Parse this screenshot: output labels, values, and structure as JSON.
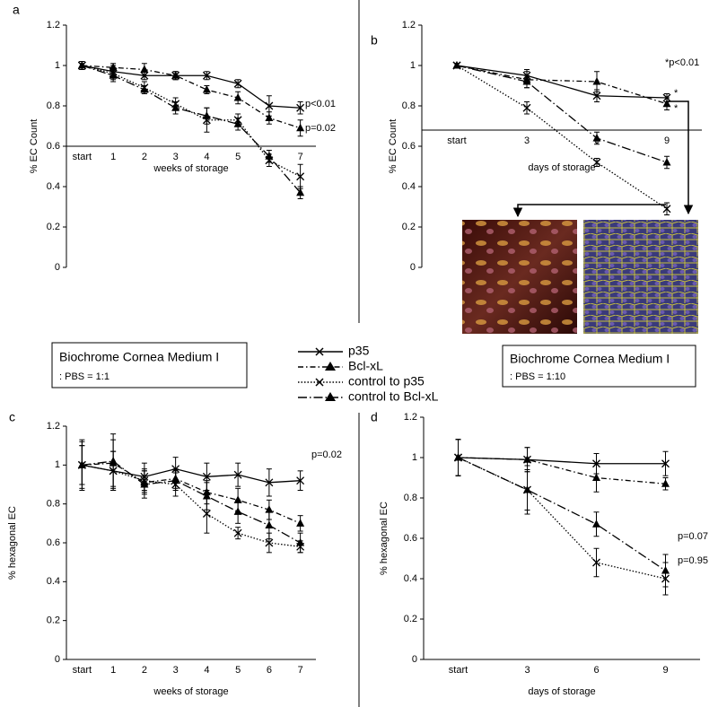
{
  "chart_data": [
    {
      "type": "line",
      "panel_label": "a",
      "y_label": "% EC Count",
      "x_label": "weeks of storage",
      "categories": [
        "start",
        "1",
        "2",
        "3",
        "4",
        "5",
        "6",
        "7"
      ],
      "ylim": [
        0,
        1.2
      ],
      "yticks": [
        0,
        0.2,
        0.4,
        0.6,
        0.8,
        1,
        1.2
      ],
      "annotations": [
        "p<0.01",
        "p=0.02"
      ],
      "series": [
        {
          "name": "p35",
          "color": "#000000",
          "dash": "solid",
          "marker": "x",
          "values": [
            1,
            0.97,
            0.95,
            0.95,
            0.95,
            0.91,
            0.8,
            0.79
          ],
          "errors": [
            0.02,
            0.03,
            0.02,
            0.02,
            0.02,
            0.02,
            0.05,
            0.03
          ]
        },
        {
          "name": "Bcl-xL",
          "color": "#000000",
          "dash": "dashdot",
          "marker": "triangle",
          "values": [
            1,
            0.99,
            0.98,
            0.95,
            0.88,
            0.84,
            0.74,
            0.69
          ],
          "errors": [
            0.02,
            0.02,
            0.03,
            0.02,
            0.02,
            0.03,
            0.03,
            0.04
          ]
        },
        {
          "name": "control to p35",
          "color": "#000000",
          "dash": "dotted",
          "marker": "x",
          "values": [
            1,
            0.96,
            0.89,
            0.81,
            0.73,
            0.73,
            0.53,
            0.45
          ],
          "errors": [
            0.02,
            0.03,
            0.03,
            0.03,
            0.06,
            0.03,
            0.03,
            0.06
          ]
        },
        {
          "name": "control to Bcl-xL",
          "color": "#000000",
          "dash": "longdashdot",
          "marker": "triangle",
          "values": [
            1,
            0.95,
            0.88,
            0.79,
            0.75,
            0.71,
            0.55,
            0.37
          ],
          "errors": [
            0.02,
            0.03,
            0.02,
            0.03,
            0.04,
            0.03,
            0.03,
            0.03
          ]
        }
      ]
    },
    {
      "type": "line",
      "panel_label": "b",
      "y_label": "% EC Count",
      "x_label": "days of storage",
      "categories": [
        "start",
        "3",
        "6",
        "9"
      ],
      "ylim": [
        0,
        1.2
      ],
      "yticks": [
        0,
        0.2,
        0.4,
        0.6,
        0.8,
        1,
        1.2
      ],
      "annotations": [
        "*p<0.01",
        "*",
        "*"
      ],
      "series": [
        {
          "color": "#000000",
          "dash": "solid",
          "marker": "x",
          "values": [
            1,
            0.95,
            0.85,
            0.84
          ],
          "errors": [
            0.01,
            0.03,
            0.03,
            0.02
          ]
        },
        {
          "color": "#000000",
          "dash": "dashdot",
          "marker": "triangle",
          "values": [
            1,
            0.93,
            0.92,
            0.81
          ],
          "errors": [
            0.01,
            0.04,
            0.05,
            0.03
          ]
        },
        {
          "color": "#000000",
          "dash": "dotted",
          "marker": "x",
          "values": [
            1,
            0.79,
            0.52,
            0.29
          ],
          "errors": [
            0.01,
            0.03,
            0.02,
            0.03
          ]
        },
        {
          "color": "#000000",
          "dash": "longdashdot",
          "marker": "triangle",
          "values": [
            1,
            0.92,
            0.64,
            0.52
          ],
          "errors": [
            0.01,
            0.03,
            0.03,
            0.03
          ]
        }
      ]
    },
    {
      "type": "line",
      "panel_label": "c",
      "y_label": "% hexagonal EC",
      "x_label": "weeks of storage",
      "categories": [
        "start",
        "1",
        "2",
        "3",
        "4",
        "5",
        "6",
        "7"
      ],
      "ylim": [
        0,
        1.2
      ],
      "yticks": [
        0,
        0.2,
        0.4,
        0.6,
        0.8,
        1,
        1.2
      ],
      "annotations": [
        "p=0.02"
      ],
      "series": [
        {
          "color": "#000000",
          "dash": "solid",
          "marker": "x",
          "values": [
            1,
            0.97,
            0.94,
            0.98,
            0.94,
            0.95,
            0.91,
            0.92
          ],
          "errors": [
            0.12,
            0.1,
            0.07,
            0.06,
            0.07,
            0.06,
            0.07,
            0.05
          ]
        },
        {
          "color": "#000000",
          "dash": "dashdot",
          "marker": "triangle",
          "values": [
            1,
            1.01,
            0.91,
            0.93,
            0.86,
            0.82,
            0.77,
            0.7
          ],
          "errors": [
            0.1,
            0.12,
            0.06,
            0.05,
            0.06,
            0.06,
            0.05,
            0.04
          ]
        },
        {
          "color": "#000000",
          "dash": "dotted",
          "marker": "x",
          "values": [
            1,
            0.97,
            0.92,
            0.9,
            0.75,
            0.65,
            0.6,
            0.58
          ],
          "errors": [
            0.1,
            0.1,
            0.06,
            0.06,
            0.1,
            0.03,
            0.05,
            0.03
          ]
        },
        {
          "color": "#000000",
          "dash": "longdashdot",
          "marker": "triangle",
          "values": [
            1,
            1.02,
            0.9,
            0.92,
            0.84,
            0.76,
            0.69,
            0.6
          ],
          "errors": [
            0.13,
            0.14,
            0.07,
            0.05,
            0.07,
            0.06,
            0.07,
            0.05
          ]
        }
      ]
    },
    {
      "type": "line",
      "panel_label": "d",
      "y_label": "% hexagonal EC",
      "x_label": "days of storage",
      "categories": [
        "start",
        "3",
        "6",
        "9"
      ],
      "ylim": [
        0,
        1.2
      ],
      "yticks": [
        0,
        0.2,
        0.4,
        0.6,
        0.8,
        1,
        1.2
      ],
      "annotations": [
        "p=0.07",
        "p=0.95"
      ],
      "series": [
        {
          "color": "#000000",
          "dash": "solid",
          "marker": "x",
          "values": [
            1,
            0.99,
            0.97,
            0.97
          ],
          "errors": [
            0.09,
            0.06,
            0.05,
            0.06
          ]
        },
        {
          "color": "#000000",
          "dash": "dashdot",
          "marker": "triangle",
          "values": [
            1,
            0.99,
            0.9,
            0.87
          ],
          "errors": [
            0.09,
            0.06,
            0.07,
            0.03
          ]
        },
        {
          "color": "#000000",
          "dash": "dotted",
          "marker": "x",
          "values": [
            1,
            0.84,
            0.48,
            0.4
          ],
          "errors": [
            0.09,
            0.12,
            0.07,
            0.08
          ]
        },
        {
          "color": "#000000",
          "dash": "longdashdot",
          "marker": "triangle",
          "values": [
            1,
            0.84,
            0.67,
            0.44
          ],
          "errors": [
            0.09,
            0.1,
            0.06,
            0.08
          ]
        }
      ]
    }
  ],
  "medium_boxes": [
    {
      "line1": "Biochrome Cornea Medium I",
      "line2": ": PBS = 1:1"
    },
    {
      "line1": "Biochrome Cornea Medium I",
      "line2": ": PBS = 1:10"
    }
  ]
}
